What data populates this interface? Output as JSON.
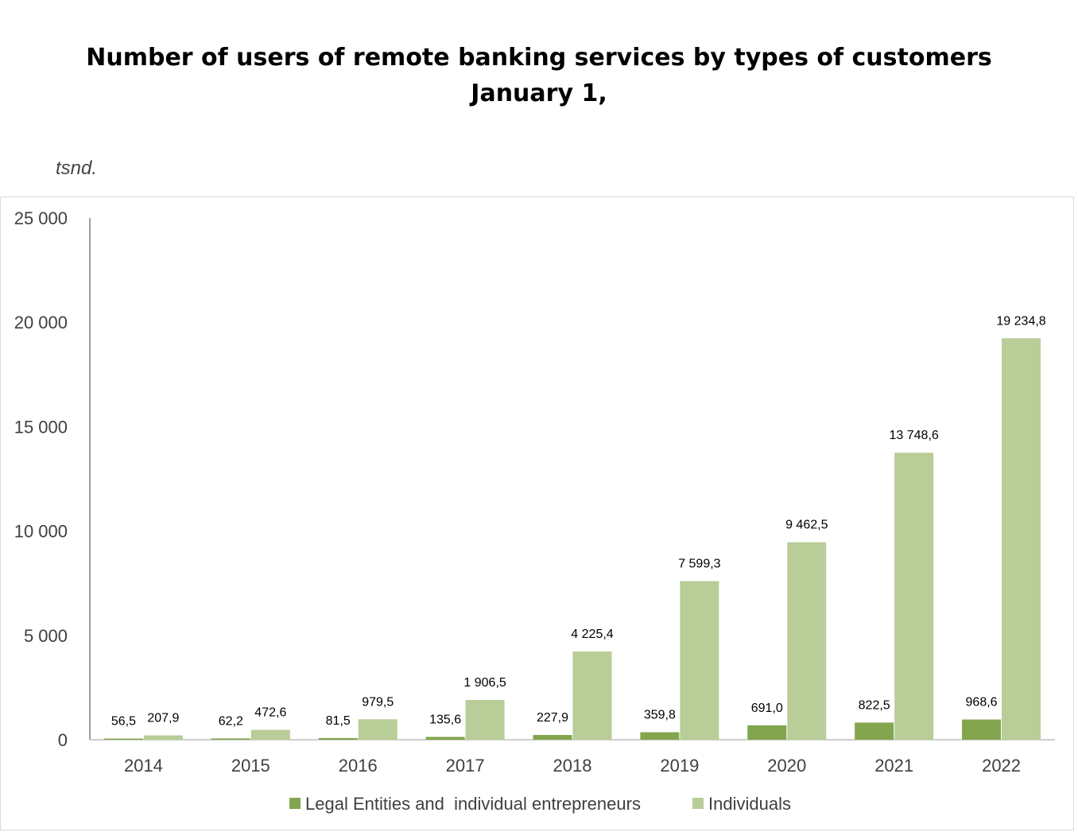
{
  "title_lines": [
    "Number of users of remote banking services by types of customers",
    "January 1,"
  ],
  "unit": "tsnd.",
  "chart_data": {
    "type": "bar",
    "categories": [
      "2014",
      "2015",
      "2016",
      "2017",
      "2018",
      "2019",
      "2020",
      "2021",
      "2022"
    ],
    "series": [
      {
        "name": "Legal Entities and  individual entrepreneurs",
        "color": "#82a54d",
        "values": [
          56.5,
          62.2,
          81.5,
          135.6,
          227.9,
          359.8,
          691.0,
          822.5,
          968.6
        ],
        "labels": [
          "56,5",
          "62,2",
          "81,5",
          "135,6",
          "227,9",
          "359,8",
          "691,0",
          "822,5",
          "968,6"
        ]
      },
      {
        "name": "Individuals",
        "color": "#b8cd97",
        "values": [
          207.9,
          472.6,
          979.5,
          1906.5,
          4225.4,
          7599.3,
          9462.5,
          13748.6,
          19234.8
        ],
        "labels": [
          "207,9",
          "472,6",
          "979,5",
          "1 906,5",
          "4 225,4",
          "7 599,3",
          "9 462,5",
          "13 748,6",
          "19 234,8"
        ]
      }
    ],
    "yticks": [
      0,
      5000,
      10000,
      15000,
      20000,
      25000
    ],
    "ytick_labels": [
      "0",
      "5 000",
      "10 000",
      "15 000",
      "20 000",
      "25 000"
    ],
    "ylim": [
      0,
      25000
    ],
    "legend_position": "bottom",
    "grid": false
  }
}
